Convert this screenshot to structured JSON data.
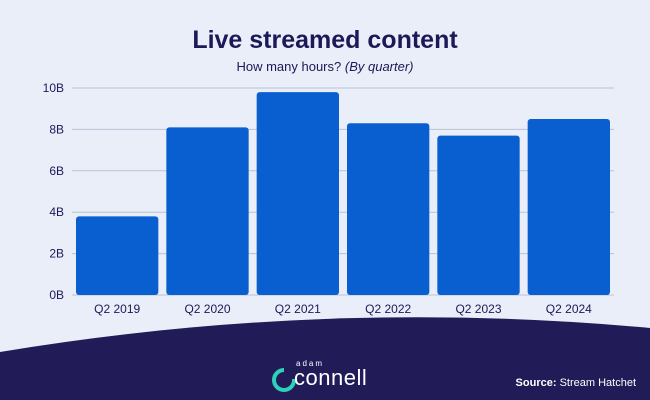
{
  "chart_data": {
    "type": "bar",
    "title": "Live streamed content",
    "subtitle": "How many hours?",
    "subtitle_em": "(By quarter)",
    "categories": [
      "Q2 2019",
      "Q2 2020",
      "Q2 2021",
      "Q2 2022",
      "Q2 2023",
      "Q2 2024"
    ],
    "values": [
      3.8,
      8.1,
      9.8,
      8.3,
      7.7,
      8.5
    ],
    "unit": "B hours",
    "ylim": [
      0,
      10
    ],
    "yticks": [
      "0B",
      "2B",
      "4B",
      "6B",
      "8B",
      "10B"
    ],
    "grid": true,
    "colors": {
      "bar": "#0a5fd0",
      "grid": "#b9c3d6",
      "text": "#1c1958"
    }
  },
  "footer": {
    "source_label": "Source:",
    "source_text": "Stream Hatchet",
    "logo_top": "adam",
    "logo_main": "connell",
    "band_color": "#211c57"
  }
}
